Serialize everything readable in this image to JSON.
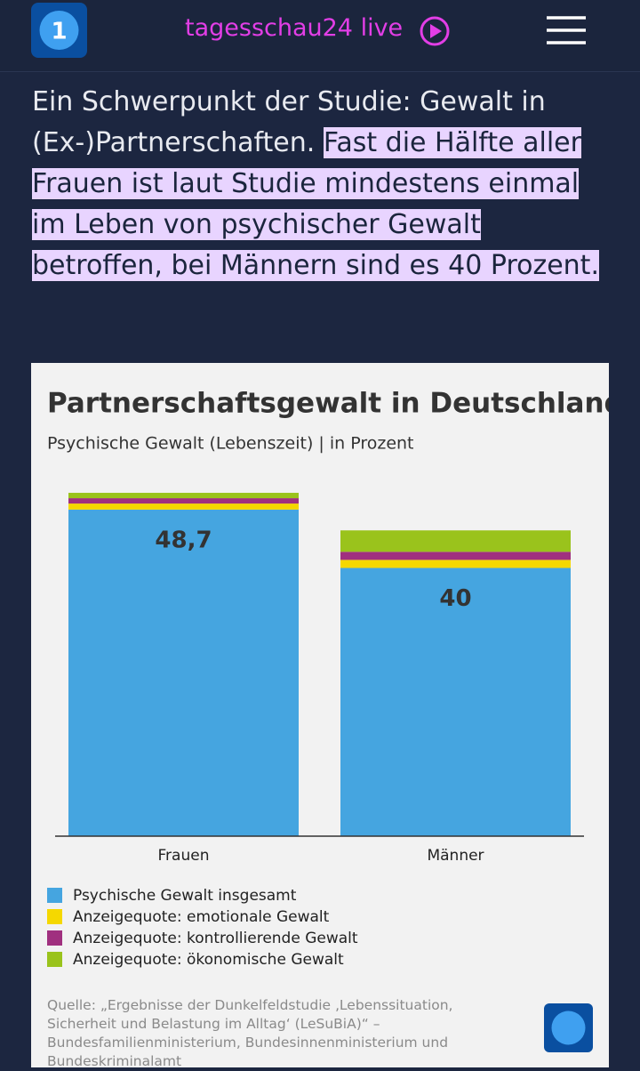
{
  "header": {
    "title": "tagesschau24 live"
  },
  "article": {
    "text": "Ein Schwerpunkt der Studie: Gewalt in (Ex-)Partnerschaften. ",
    "highlight": "Fast die Hälfte aller Frauen ist laut Studie mindestens einmal im Leben von psychischer Gewalt betroffen, bei Männern sind es 40 Prozent."
  },
  "chart_data": {
    "type": "stacked-bar",
    "title": "Partnerschaftsgewalt in Deutschland",
    "subtitle": "Psychische Gewalt (Lebenszeit) | in Prozent",
    "categories": [
      "Frauen",
      "Männer"
    ],
    "series": [
      {
        "name": "Psychische Gewalt insgesamt",
        "color": "#45a5e0",
        "values": [
          48.7,
          40
        ],
        "value_labels": [
          "48,7",
          "40"
        ]
      },
      {
        "name": "Anzeigequote: emotionale Gewalt",
        "color": "#f5d800",
        "values": [
          0.9,
          1.2
        ]
      },
      {
        "name": "Anzeigequote: kontrollierende Gewalt",
        "color": "#a0307f",
        "values": [
          0.8,
          1.2
        ]
      },
      {
        "name": "Anzeigequote: ökonomische Gewalt",
        "color": "#9ac31c",
        "values": [
          0.8,
          3.2
        ]
      }
    ],
    "ylim": [
      0,
      52
    ],
    "source": "Quelle: „Ergebnisse der Dunkelfeldstudie ‚Lebenssituation, Sicherheit und Belastung im Alltag‘ (LeSuBiA)“ – Bundesfamilienministerium, Bundesinnenministerium und Bundeskriminalamt"
  }
}
